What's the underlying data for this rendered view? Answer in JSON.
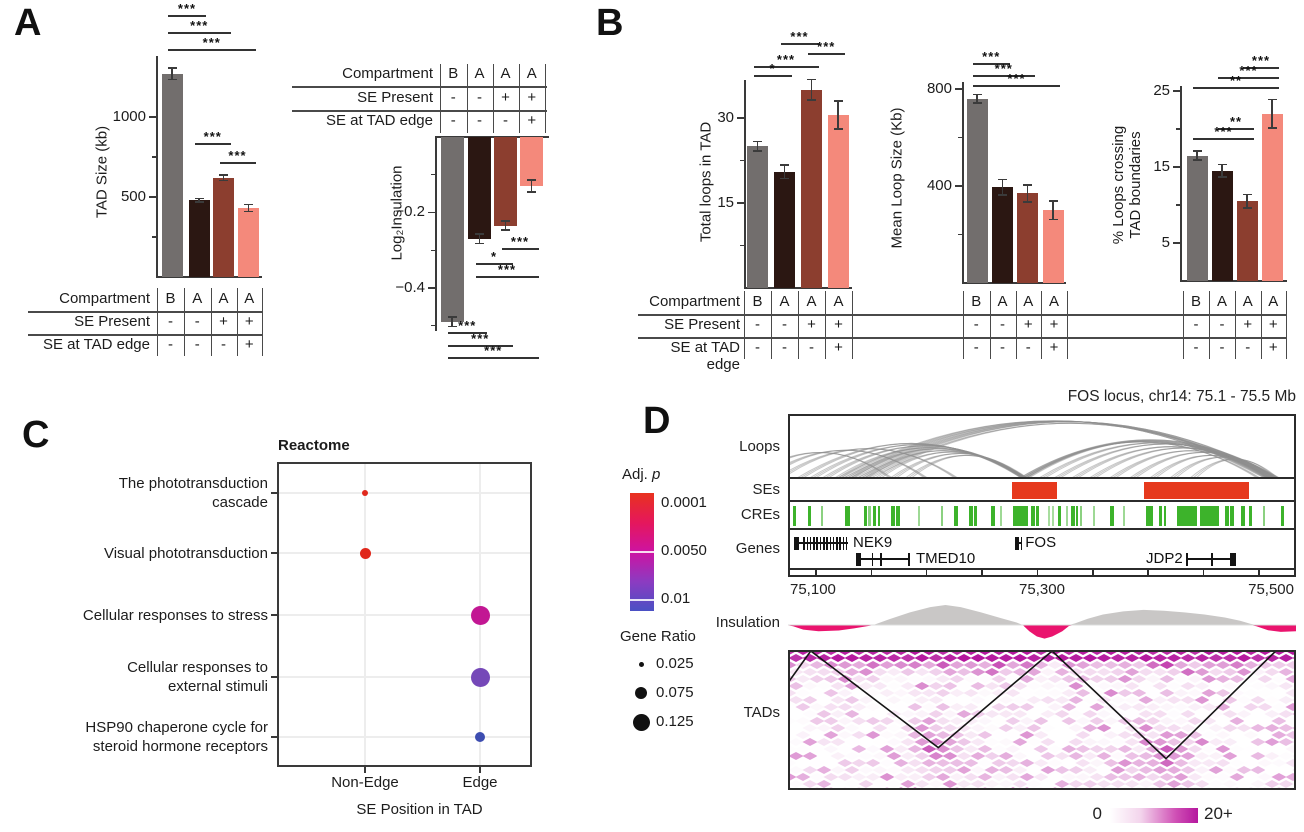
{
  "panels": {
    "A": "A",
    "B": "B",
    "C": "C",
    "D": "D"
  },
  "colors": {
    "bar_gray": "#726e6d",
    "bar_darkbrown": "#2b1712",
    "bar_brown": "#8c3e2f",
    "bar_salmon": "#f4897b",
    "axis": "#3a3a3a",
    "se_red": "#e6391d",
    "cre_green": "#3db32b",
    "insulation_gray": "#c9c7c6",
    "insulation_pink": "#ea146e",
    "heatmap_magenta": "#b5179e",
    "loop_gray": "#909090"
  },
  "condition_table": {
    "rows": [
      {
        "label": "Compartment",
        "values": [
          "B",
          "A",
          "A",
          "A"
        ]
      },
      {
        "label": "SE Present",
        "values": [
          "-",
          "-",
          "+",
          "+"
        ]
      },
      {
        "label": "SE at TAD edge",
        "values": [
          "-",
          "-",
          "-",
          "+"
        ]
      }
    ]
  },
  "chart_data": [
    {
      "id": "tad_size",
      "type": "bar",
      "ylabel": "TAD Size (kb)",
      "categories": [
        "B −/−",
        "A −/−",
        "A +/−",
        "A +/+"
      ],
      "values": [
        1270,
        480,
        620,
        430
      ],
      "errors": [
        35,
        12,
        18,
        22
      ],
      "yticks": [
        500,
        1000
      ],
      "minor_yticks": [
        250,
        750
      ],
      "ylim": [
        0,
        1400
      ],
      "significance": [
        {
          "a": 0,
          "b": 1,
          "label": "***"
        },
        {
          "a": 0,
          "b": 2,
          "label": "***"
        },
        {
          "a": 0,
          "b": 3,
          "label": "***"
        },
        {
          "a": 1,
          "b": 2,
          "label": "***"
        },
        {
          "a": 2,
          "b": 3,
          "label": "***"
        }
      ]
    },
    {
      "id": "log2_insulation",
      "type": "bar",
      "ylabel": "Log₂Insulation",
      "categories": [
        "B −/−",
        "A −/−",
        "A +/−",
        "A +/+"
      ],
      "values": [
        -0.49,
        -0.27,
        -0.235,
        -0.13
      ],
      "errors": [
        0.012,
        0.013,
        0.012,
        0.016
      ],
      "yticks": [
        -0.2,
        -0.4
      ],
      "minor_yticks": [
        -0.1,
        -0.3,
        -0.5
      ],
      "ylim": [
        -0.53,
        0
      ],
      "significance": [
        {
          "a": 2,
          "b": 3,
          "label": "***"
        },
        {
          "a": 1,
          "b": 2,
          "label": "*"
        },
        {
          "a": 1,
          "b": 3,
          "label": "***"
        },
        {
          "a": 0,
          "b": 1,
          "label": "***"
        },
        {
          "a": 0,
          "b": 2,
          "label": "***"
        },
        {
          "a": 0,
          "b": 3,
          "label": "***"
        }
      ]
    },
    {
      "id": "total_loops",
      "type": "bar",
      "ylabel": "Total loops in TAD",
      "categories": [
        "B −/−",
        "A −/−",
        "A +/−",
        "A +/+"
      ],
      "values": [
        25,
        20.5,
        35,
        30.5
      ],
      "errors": [
        0.8,
        1.2,
        1.8,
        2.5
      ],
      "yticks": [
        15,
        30
      ],
      "minor_yticks": [
        7.5,
        22.5
      ],
      "ylim": [
        0,
        40
      ],
      "significance": [
        {
          "a": 1,
          "b": 2,
          "label": "***"
        },
        {
          "a": 2,
          "b": 3,
          "label": "***"
        },
        {
          "a": 0,
          "b": 2,
          "label": "***"
        },
        {
          "a": 0,
          "b": 1,
          "label": "*"
        }
      ]
    },
    {
      "id": "mean_loop_size",
      "type": "bar",
      "ylabel": "Mean Loop Size (Kb)",
      "categories": [
        "B −/−",
        "A −/−",
        "A +/−",
        "A +/+"
      ],
      "values": [
        760,
        395,
        370,
        300
      ],
      "errors": [
        18,
        32,
        35,
        38
      ],
      "yticks": [
        400,
        800
      ],
      "minor_yticks": [
        200,
        600
      ],
      "ylim": [
        0,
        840
      ],
      "significance": [
        {
          "a": 0,
          "b": 1,
          "label": "***"
        },
        {
          "a": 0,
          "b": 2,
          "label": "***"
        },
        {
          "a": 0,
          "b": 3,
          "label": "***"
        }
      ]
    },
    {
      "id": "pct_loops_crossing",
      "type": "bar",
      "ylabel": "% Loops crossing\nTAD boundaries",
      "categories": [
        "B −/−",
        "A −/−",
        "A +/−",
        "A +/+"
      ],
      "values": [
        16.5,
        14.5,
        10.5,
        22
      ],
      "errors": [
        0.6,
        0.8,
        0.9,
        1.9
      ],
      "yticks": [
        5,
        15,
        25
      ],
      "minor_yticks": [
        10,
        20
      ],
      "ylim": [
        0,
        27
      ],
      "significance": [
        {
          "a": 2,
          "b": 3,
          "label": "***"
        },
        {
          "a": 1,
          "b": 3,
          "label": "***"
        },
        {
          "a": 0,
          "b": 3,
          "label": "**"
        },
        {
          "a": 1,
          "b": 2,
          "label": "**"
        },
        {
          "a": 0,
          "b": 2,
          "label": "***"
        }
      ]
    },
    {
      "id": "reactome",
      "type": "scatter",
      "title": "Reactome",
      "xlabel": "SE Position in TAD",
      "x_categories": [
        "Non-Edge",
        "Edge"
      ],
      "y_categories": [
        "The phototransduction\ncascade",
        "Visual phototransduction",
        "Cellular responses to stress",
        "Cellular responses to\nexternal stimuli",
        "HSP90 chaperone cycle for\nsteroid hormone receptors"
      ],
      "points": [
        {
          "term_index": 0,
          "x": "Non-Edge",
          "gene_ratio": 0.025,
          "adj_p": "0.0001",
          "r": 3,
          "color": "#e0281c"
        },
        {
          "term_index": 1,
          "x": "Non-Edge",
          "gene_ratio": 0.05,
          "adj_p": "0.0002",
          "r": 5.5,
          "color": "#e0281c"
        },
        {
          "term_index": 2,
          "x": "Edge",
          "gene_ratio": 0.105,
          "adj_p": "0.004",
          "r": 9.5,
          "color": "#c21793"
        },
        {
          "term_index": 3,
          "x": "Edge",
          "gene_ratio": 0.1,
          "adj_p": "0.007",
          "r": 9.5,
          "color": "#7548b8"
        },
        {
          "term_index": 4,
          "x": "Edge",
          "gene_ratio": 0.04,
          "adj_p": "0.009",
          "r": 5,
          "color": "#3d4db0"
        }
      ],
      "legend": {
        "adj_p": {
          "title": "Adj. p",
          "tick_labels": [
            "0.0001",
            "0.0050",
            "0.01"
          ],
          "gradient": [
            "#e8321f",
            "#e5175c",
            "#cd13a2",
            "#8c3bc1",
            "#4a50c4"
          ]
        },
        "gene_ratio": {
          "title": "Gene Ratio",
          "items": [
            {
              "label": "0.025",
              "r": 2.5
            },
            {
              "label": "0.075",
              "r": 6
            },
            {
              "label": "0.125",
              "r": 8.5
            }
          ]
        }
      }
    },
    {
      "id": "fos_locus",
      "type": "genome-tracks",
      "title": "FOS locus, chr14: 75.1 - 75.5 Mb",
      "track_labels": [
        "Loops",
        "SEs",
        "CREs",
        "Genes",
        "Insulation",
        "TADs"
      ],
      "axis_labels": [
        "75,100",
        "75,300",
        "75,500"
      ],
      "loops": [
        [
          -0.08,
          0.2
        ],
        [
          -0.05,
          0.27
        ],
        [
          -0.02,
          0.33
        ],
        [
          0.02,
          0.462
        ],
        [
          0.045,
          0.465
        ],
        [
          0.07,
          0.468
        ],
        [
          0.095,
          0.462
        ],
        [
          0.12,
          0.466
        ],
        [
          0.148,
          0.462
        ],
        [
          0.175,
          0.465
        ],
        [
          0.205,
          0.468
        ],
        [
          0.235,
          0.464
        ],
        [
          0.1,
          0.944
        ],
        [
          0.113,
          0.952
        ],
        [
          0.127,
          0.96
        ],
        [
          0.14,
          0.968
        ],
        [
          0.155,
          0.957
        ],
        [
          0.462,
          0.93
        ],
        [
          0.465,
          0.945
        ],
        [
          0.468,
          0.958
        ],
        [
          0.462,
          0.968
        ],
        [
          0.5,
          0.952
        ],
        [
          0.53,
          0.963
        ],
        [
          0.565,
          0.949
        ],
        [
          0.6,
          0.96
        ],
        [
          0.64,
          0.951
        ],
        [
          0.68,
          0.962
        ],
        [
          0.72,
          0.95
        ],
        [
          0.76,
          0.958
        ],
        [
          0.8,
          0.965
        ]
      ],
      "se_boxes": [
        [
          0.44,
          0.529
        ],
        [
          0.701,
          0.907
        ]
      ],
      "cres": [
        [
          0.01,
          0.006
        ],
        [
          0.04,
          0.006
        ],
        [
          0.065,
          0.004,
          0.6
        ],
        [
          0.113,
          0.009
        ],
        [
          0.149,
          0.006
        ],
        [
          0.158,
          0.005,
          0.6
        ],
        [
          0.168,
          0.006
        ],
        [
          0.178,
          0.004
        ],
        [
          0.202,
          0.009
        ],
        [
          0.212,
          0.009
        ],
        [
          0.255,
          0.005,
          0.5
        ],
        [
          0.302,
          0.004,
          0.6
        ],
        [
          0.327,
          0.007
        ],
        [
          0.356,
          0.008
        ],
        [
          0.366,
          0.006
        ],
        [
          0.4,
          0.008
        ],
        [
          0.418,
          0.004,
          0.5
        ],
        [
          0.442,
          0.03
        ],
        [
          0.479,
          0.007
        ],
        [
          0.489,
          0.006
        ],
        [
          0.512,
          0.004,
          0.45
        ],
        [
          0.52,
          0.003,
          0.45
        ],
        [
          0.532,
          0.006
        ],
        [
          0.547,
          0.003,
          0.5
        ],
        [
          0.558,
          0.006
        ],
        [
          0.566,
          0.005
        ],
        [
          0.574,
          0.004,
          0.6
        ],
        [
          0.6,
          0.004,
          0.5
        ],
        [
          0.634,
          0.008
        ],
        [
          0.66,
          0.004,
          0.5
        ],
        [
          0.705,
          0.008
        ],
        [
          0.713,
          0.006
        ],
        [
          0.73,
          0.007
        ],
        [
          0.74,
          0.005
        ],
        [
          0.766,
          0.04
        ],
        [
          0.812,
          0.037
        ],
        [
          0.861,
          0.007
        ],
        [
          0.871,
          0.006
        ],
        [
          0.891,
          0.008
        ],
        [
          0.908,
          0.005
        ],
        [
          0.935,
          0.004,
          0.6
        ],
        [
          0.97,
          0.007
        ]
      ],
      "genes": [
        {
          "name": "NEK9",
          "row": 0,
          "start": 0.012,
          "end": 0.118,
          "style": "comb",
          "label_at": 0.128
        },
        {
          "name": "FOS",
          "row": 0,
          "start": 0.447,
          "end": 0.461,
          "style": "compact",
          "label_at": 0.467
        },
        {
          "name": "TMED10",
          "row": 1,
          "start": 0.133,
          "end": 0.24,
          "style": "sparse",
          "label_at": 0.252
        },
        {
          "name": "JDP2",
          "row": 1,
          "start": 0.784,
          "end": 0.882,
          "style": "sparse-end",
          "label_at": 0.777,
          "label_side": "left"
        }
      ],
      "insulation": [
        [
          0,
          -0.02
        ],
        [
          0.01,
          -0.06
        ],
        [
          0.03,
          -0.22
        ],
        [
          0.06,
          -0.3
        ],
        [
          0.1,
          -0.26
        ],
        [
          0.13,
          -0.16
        ],
        [
          0.155,
          -0.06
        ],
        [
          0.17,
          0.02
        ],
        [
          0.2,
          0.28
        ],
        [
          0.24,
          0.6
        ],
        [
          0.28,
          0.85
        ],
        [
          0.31,
          0.95
        ],
        [
          0.34,
          0.85
        ],
        [
          0.38,
          0.6
        ],
        [
          0.42,
          0.32
        ],
        [
          0.45,
          0.12
        ],
        [
          0.462,
          0
        ],
        [
          0.475,
          -0.3
        ],
        [
          0.49,
          -0.55
        ],
        [
          0.505,
          -0.65
        ],
        [
          0.52,
          -0.55
        ],
        [
          0.54,
          -0.3
        ],
        [
          0.553,
          -0.05
        ],
        [
          0.565,
          0.08
        ],
        [
          0.59,
          0.3
        ],
        [
          0.62,
          0.5
        ],
        [
          0.66,
          0.65
        ],
        [
          0.7,
          0.72
        ],
        [
          0.74,
          0.68
        ],
        [
          0.78,
          0.6
        ],
        [
          0.82,
          0.5
        ],
        [
          0.86,
          0.36
        ],
        [
          0.89,
          0.2
        ],
        [
          0.91,
          0.06
        ],
        [
          0.922,
          -0.06
        ],
        [
          0.945,
          -0.25
        ],
        [
          0.97,
          -0.33
        ],
        [
          1,
          -0.3
        ]
      ],
      "heatmap": {
        "tad_lines": [
          [
            [
              0,
              0.22
            ],
            [
              0.043,
              0
            ]
          ],
          [
            [
              0.043,
              0
            ],
            [
              0.295,
              0.7
            ],
            [
              0.52,
              0
            ]
          ],
          [
            [
              0.52,
              0
            ],
            [
              0.745,
              0.78
            ],
            [
              0.962,
              0
            ]
          ]
        ],
        "colorbar": {
          "min": "0",
          "max": "20+"
        }
      }
    }
  ]
}
